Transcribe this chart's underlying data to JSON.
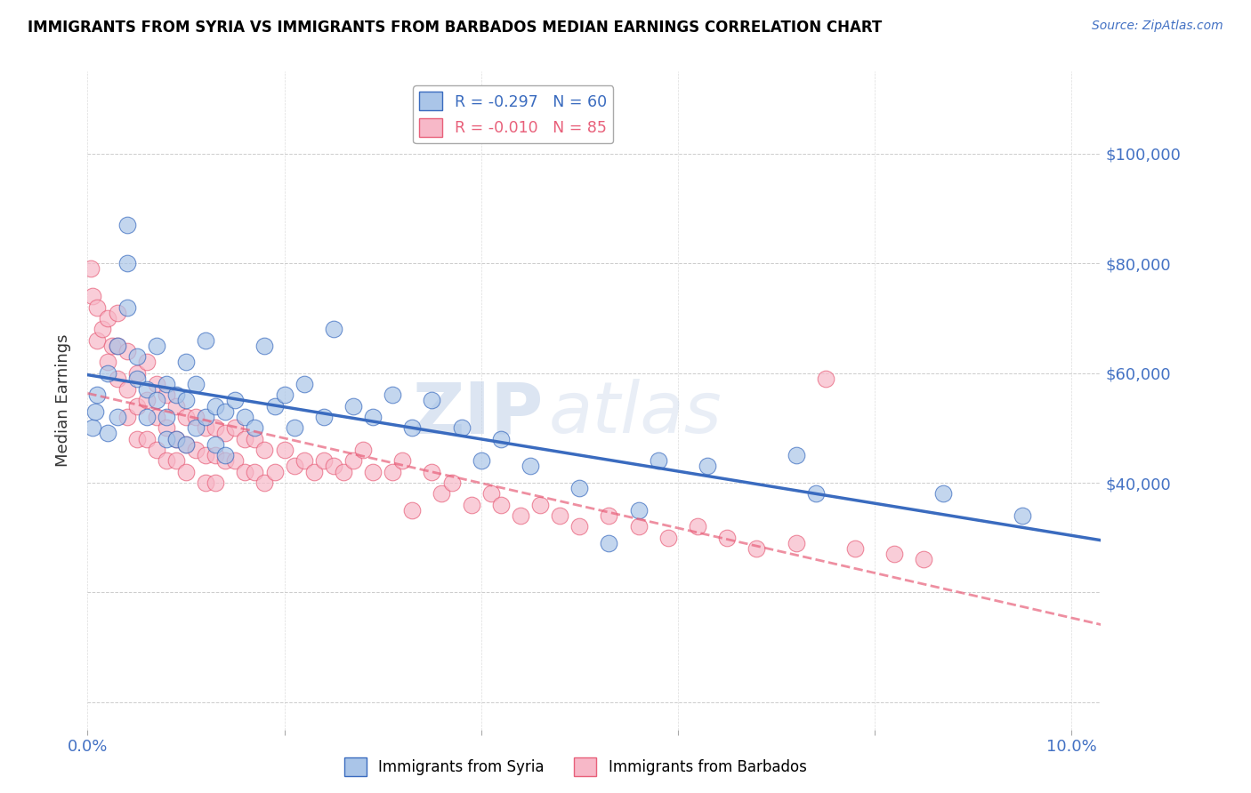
{
  "title": "IMMIGRANTS FROM SYRIA VS IMMIGRANTS FROM BARBADOS MEDIAN EARNINGS CORRELATION CHART",
  "source": "Source: ZipAtlas.com",
  "ylabel": "Median Earnings",
  "xlim": [
    0.0,
    0.103
  ],
  "ylim": [
    -5000,
    115000
  ],
  "background_color": "#ffffff",
  "grid_color": "#cccccc",
  "axis_color": "#4472c4",
  "syria_color": "#aac5e8",
  "barbados_color": "#f7b8c8",
  "syria_line_color": "#3a6bbf",
  "barbados_line_color": "#e8607a",
  "syria_label": "Immigrants from Syria",
  "barbados_label": "Immigrants from Barbados",
  "syria_R": "-0.297",
  "syria_N": "60",
  "barbados_R": "-0.010",
  "barbados_N": "85",
  "watermark_zip": "ZIP",
  "watermark_atlas": "atlas",
  "syria_x": [
    0.0005,
    0.0008,
    0.001,
    0.002,
    0.002,
    0.003,
    0.003,
    0.004,
    0.004,
    0.004,
    0.005,
    0.005,
    0.006,
    0.006,
    0.007,
    0.007,
    0.008,
    0.008,
    0.008,
    0.009,
    0.009,
    0.01,
    0.01,
    0.01,
    0.011,
    0.011,
    0.012,
    0.012,
    0.013,
    0.013,
    0.014,
    0.014,
    0.015,
    0.016,
    0.017,
    0.018,
    0.019,
    0.02,
    0.021,
    0.022,
    0.024,
    0.025,
    0.027,
    0.029,
    0.031,
    0.033,
    0.035,
    0.038,
    0.04,
    0.042,
    0.045,
    0.05,
    0.053,
    0.056,
    0.058,
    0.063,
    0.072,
    0.074,
    0.087,
    0.095
  ],
  "syria_y": [
    50000,
    53000,
    56000,
    60000,
    49000,
    52000,
    65000,
    87000,
    80000,
    72000,
    63000,
    59000,
    57000,
    52000,
    65000,
    55000,
    58000,
    52000,
    48000,
    56000,
    48000,
    62000,
    55000,
    47000,
    58000,
    50000,
    66000,
    52000,
    54000,
    47000,
    53000,
    45000,
    55000,
    52000,
    50000,
    65000,
    54000,
    56000,
    50000,
    58000,
    52000,
    68000,
    54000,
    52000,
    56000,
    50000,
    55000,
    50000,
    44000,
    48000,
    43000,
    39000,
    29000,
    35000,
    44000,
    43000,
    45000,
    38000,
    38000,
    34000
  ],
  "barbados_x": [
    0.0003,
    0.0005,
    0.001,
    0.001,
    0.0015,
    0.002,
    0.002,
    0.0025,
    0.003,
    0.003,
    0.003,
    0.004,
    0.004,
    0.004,
    0.005,
    0.005,
    0.005,
    0.006,
    0.006,
    0.006,
    0.007,
    0.007,
    0.007,
    0.008,
    0.008,
    0.008,
    0.009,
    0.009,
    0.009,
    0.01,
    0.01,
    0.01,
    0.011,
    0.011,
    0.012,
    0.012,
    0.012,
    0.013,
    0.013,
    0.013,
    0.014,
    0.014,
    0.015,
    0.015,
    0.016,
    0.016,
    0.017,
    0.017,
    0.018,
    0.018,
    0.019,
    0.02,
    0.021,
    0.022,
    0.023,
    0.024,
    0.025,
    0.026,
    0.027,
    0.028,
    0.029,
    0.031,
    0.032,
    0.033,
    0.035,
    0.036,
    0.037,
    0.039,
    0.041,
    0.042,
    0.044,
    0.046,
    0.048,
    0.05,
    0.053,
    0.056,
    0.059,
    0.062,
    0.065,
    0.068,
    0.072,
    0.078,
    0.082,
    0.085,
    0.075
  ],
  "barbados_y": [
    79000,
    74000,
    72000,
    66000,
    68000,
    70000,
    62000,
    65000,
    71000,
    65000,
    59000,
    64000,
    57000,
    52000,
    60000,
    54000,
    48000,
    62000,
    55000,
    48000,
    58000,
    52000,
    46000,
    56000,
    50000,
    44000,
    54000,
    48000,
    44000,
    52000,
    47000,
    42000,
    52000,
    46000,
    50000,
    45000,
    40000,
    50000,
    45000,
    40000,
    49000,
    44000,
    50000,
    44000,
    48000,
    42000,
    48000,
    42000,
    46000,
    40000,
    42000,
    46000,
    43000,
    44000,
    42000,
    44000,
    43000,
    42000,
    44000,
    46000,
    42000,
    42000,
    44000,
    35000,
    42000,
    38000,
    40000,
    36000,
    38000,
    36000,
    34000,
    36000,
    34000,
    32000,
    34000,
    32000,
    30000,
    32000,
    30000,
    28000,
    29000,
    28000,
    27000,
    26000,
    59000
  ]
}
